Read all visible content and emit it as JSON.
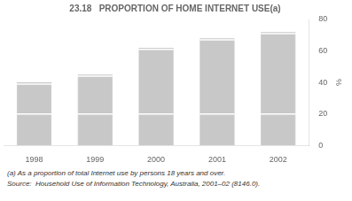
{
  "chart_data": {
    "type": "bar",
    "title": "23.18   PROPORTION OF HOME INTERNET USE(a)",
    "ylabel": "%",
    "categories": [
      "1998",
      "1999",
      "2000",
      "2001",
      "2002"
    ],
    "values": [
      40,
      45,
      62,
      68,
      72
    ],
    "color": "#c8c8c8",
    "dividers": [
      {
        "color": "#ffffff",
        "values": [
          20,
          20,
          20,
          20,
          20
        ]
      },
      {
        "color": "#ffffff",
        "values": [
          39,
          44,
          61,
          67,
          71
        ]
      }
    ],
    "ylim": [
      0,
      80
    ],
    "yticks": [
      0,
      20,
      40,
      60,
      80
    ],
    "grid": false,
    "annotations": [
      "(a) As a proportion of total Internet use by persons 18 years and over.",
      "Source:  Household Use of Information Technology, Australia, 2001–02 (8146.0)."
    ]
  }
}
